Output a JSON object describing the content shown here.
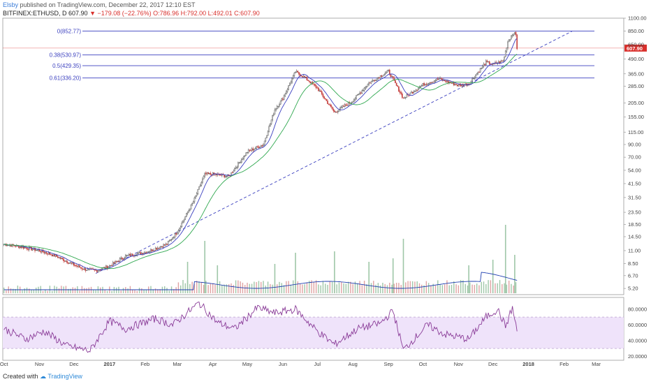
{
  "header": {
    "author": "Elsby",
    "published": "published on TradingView.com, December 22, 2017 12:10 EST",
    "symbol": "BITFINEX:ETHUSD, D",
    "last": "607.90",
    "arrow": "▼",
    "change": "−179.08 (−22.76%)",
    "ohlc": "O:786.96 H:792.00 L:492.01 C:607.90"
  },
  "footer": {
    "created_with": "Created with",
    "brand": "TradingView"
  },
  "colors": {
    "candle_up": "#5a5a5a",
    "candle_down": "#c6403e",
    "fib": "#3a3fbf",
    "sma_fast": "#3a3fbf",
    "sma_slow": "#2fa84f",
    "rsi": "#8a3c98",
    "rsi_band": "#efe3fa",
    "price_tag": "#d9302c"
  },
  "chart_data": [
    {
      "type": "candlestick",
      "title": "BITFINEX:ETHUSD, D",
      "y_scale": "log",
      "ylim": [
        4.6,
        1100
      ],
      "y_ticks": [
        "1100.00",
        "850.00",
        "650.00",
        "490.00",
        "365.00",
        "285.00",
        "205.00",
        "155.00",
        "115.00",
        "90.00",
        "70.00",
        "54.00",
        "41.50",
        "31.50",
        "23.50",
        "18.50",
        "14.50",
        "11.00",
        "8.50",
        "6.70",
        "5.20"
      ],
      "x_ticks": [
        "Oct",
        "Nov",
        "Dec",
        "2017",
        "Feb",
        "Mar",
        "Apr",
        "May",
        "Jun",
        "Jul",
        "Aug",
        "Sep",
        "Oct",
        "Nov",
        "Dec",
        "2018",
        "Feb",
        "Mar"
      ],
      "last_price_label": "607.90",
      "fib_levels": [
        {
          "label": "0(852.77)",
          "value": 852.77
        },
        {
          "label": "0.38(530.97)",
          "value": 530.97
        },
        {
          "label": "0.5(429.35)",
          "value": 429.35
        },
        {
          "label": "0.61(336.20)",
          "value": 336.2
        }
      ],
      "trendline": {
        "style": "dashed",
        "from": {
          "x": "2016-12-20",
          "y": 7.0
        },
        "to": {
          "x": "2018-02-08",
          "y": 850
        }
      },
      "close_path": [
        {
          "x": "2016-10-01",
          "y": 12.5
        },
        {
          "x": "2016-10-15",
          "y": 11.9
        },
        {
          "x": "2016-11-01",
          "y": 11.0
        },
        {
          "x": "2016-11-15",
          "y": 9.9
        },
        {
          "x": "2016-12-01",
          "y": 8.3
        },
        {
          "x": "2016-12-10",
          "y": 7.6
        },
        {
          "x": "2016-12-20",
          "y": 7.4
        },
        {
          "x": "2017-01-01",
          "y": 8.1
        },
        {
          "x": "2017-01-15",
          "y": 9.9
        },
        {
          "x": "2017-02-01",
          "y": 10.6
        },
        {
          "x": "2017-02-20",
          "y": 12.5
        },
        {
          "x": "2017-03-01",
          "y": 16.0
        },
        {
          "x": "2017-03-15",
          "y": 29.0
        },
        {
          "x": "2017-03-25",
          "y": 50.0
        },
        {
          "x": "2017-04-01",
          "y": 50.0
        },
        {
          "x": "2017-04-15",
          "y": 48.0
        },
        {
          "x": "2017-05-01",
          "y": 78.0
        },
        {
          "x": "2017-05-15",
          "y": 90.0
        },
        {
          "x": "2017-05-25",
          "y": 180.0
        },
        {
          "x": "2017-06-01",
          "y": 225.0
        },
        {
          "x": "2017-06-12",
          "y": 380.0
        },
        {
          "x": "2017-06-20",
          "y": 340.0
        },
        {
          "x": "2017-07-01",
          "y": 275.0
        },
        {
          "x": "2017-07-16",
          "y": 170.0
        },
        {
          "x": "2017-08-01",
          "y": 215.0
        },
        {
          "x": "2017-08-15",
          "y": 305.0
        },
        {
          "x": "2017-09-01",
          "y": 385.0
        },
        {
          "x": "2017-09-14",
          "y": 225.0
        },
        {
          "x": "2017-10-01",
          "y": 295.0
        },
        {
          "x": "2017-10-15",
          "y": 330.0
        },
        {
          "x": "2017-11-01",
          "y": 290.0
        },
        {
          "x": "2017-11-10",
          "y": 300.0
        },
        {
          "x": "2017-11-25",
          "y": 460.0
        },
        {
          "x": "2017-12-01",
          "y": 440.0
        },
        {
          "x": "2017-12-10",
          "y": 470.0
        },
        {
          "x": "2017-12-14",
          "y": 690.0
        },
        {
          "x": "2017-12-19",
          "y": 830.0
        },
        {
          "x": "2017-12-21",
          "y": 787.0
        },
        {
          "x": "2017-12-22",
          "y": 607.9
        }
      ]
    },
    {
      "type": "bar",
      "title": "Volume",
      "description_values": "relative volume spikes (0–1 of panel max)",
      "series": [
        {
          "x": "2017-03-10",
          "v": 0.45
        },
        {
          "x": "2017-03-25",
          "v": 0.75
        },
        {
          "x": "2017-04-05",
          "v": 0.4
        },
        {
          "x": "2017-05-25",
          "v": 0.42
        },
        {
          "x": "2017-06-12",
          "v": 0.58
        },
        {
          "x": "2017-07-16",
          "v": 0.6
        },
        {
          "x": "2017-08-15",
          "v": 0.45
        },
        {
          "x": "2017-09-05",
          "v": 0.5
        },
        {
          "x": "2017-09-14",
          "v": 0.78
        },
        {
          "x": "2017-11-10",
          "v": 0.4
        },
        {
          "x": "2017-12-01",
          "v": 0.48
        },
        {
          "x": "2017-12-12",
          "v": 0.98
        },
        {
          "x": "2017-12-20",
          "v": 0.55
        }
      ]
    },
    {
      "type": "line",
      "title": "RSI",
      "ylim": [
        15,
        95
      ],
      "y_ticks": [
        "80.0000",
        "60.0000",
        "40.0000",
        "20.0000"
      ],
      "bands": [
        30,
        70
      ],
      "values": [
        {
          "x": "2016-10-01",
          "y": 55
        },
        {
          "x": "2016-10-20",
          "y": 42
        },
        {
          "x": "2016-11-05",
          "y": 52
        },
        {
          "x": "2016-11-25",
          "y": 33
        },
        {
          "x": "2016-12-15",
          "y": 27
        },
        {
          "x": "2017-01-01",
          "y": 65
        },
        {
          "x": "2017-01-15",
          "y": 55
        },
        {
          "x": "2017-02-10",
          "y": 68
        },
        {
          "x": "2017-02-25",
          "y": 60
        },
        {
          "x": "2017-03-20",
          "y": 88
        },
        {
          "x": "2017-04-05",
          "y": 63
        },
        {
          "x": "2017-04-20",
          "y": 55
        },
        {
          "x": "2017-05-10",
          "y": 82
        },
        {
          "x": "2017-05-25",
          "y": 75
        },
        {
          "x": "2017-06-12",
          "y": 80
        },
        {
          "x": "2017-07-01",
          "y": 52
        },
        {
          "x": "2017-07-16",
          "y": 35
        },
        {
          "x": "2017-08-05",
          "y": 55
        },
        {
          "x": "2017-08-25",
          "y": 62
        },
        {
          "x": "2017-09-05",
          "y": 78
        },
        {
          "x": "2017-09-14",
          "y": 28
        },
        {
          "x": "2017-10-05",
          "y": 60
        },
        {
          "x": "2017-10-20",
          "y": 48
        },
        {
          "x": "2017-11-10",
          "y": 42
        },
        {
          "x": "2017-11-25",
          "y": 70
        },
        {
          "x": "2017-12-05",
          "y": 80
        },
        {
          "x": "2017-12-12",
          "y": 58
        },
        {
          "x": "2017-12-18",
          "y": 82
        },
        {
          "x": "2017-12-22",
          "y": 52
        }
      ]
    }
  ]
}
